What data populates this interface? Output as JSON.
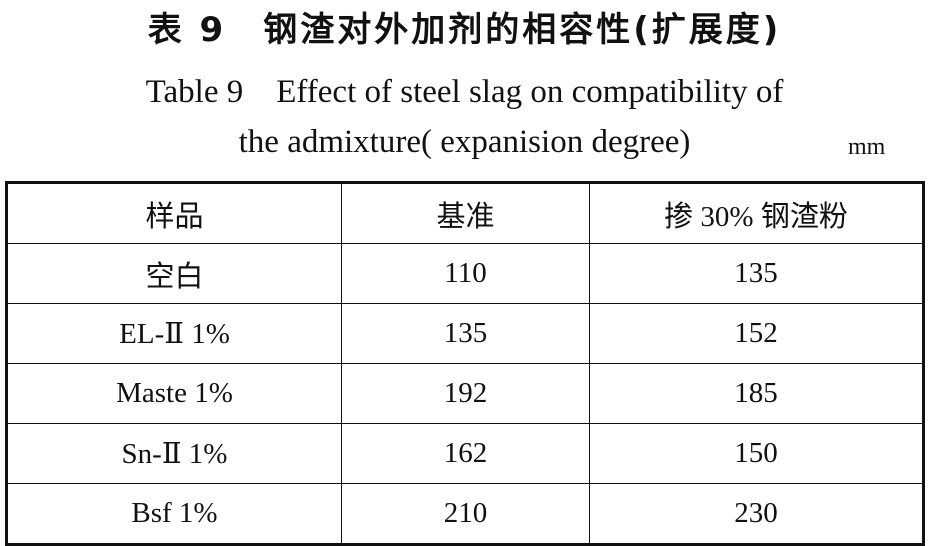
{
  "title": "表 9　钢渣对外加剂的相容性(扩展度)",
  "subtitle": [
    "Table 9　Effect of steel slag on compatibility of",
    "the admixture( expanision degree)"
  ],
  "unit": "mm",
  "table": {
    "header": [
      "样品",
      "基准",
      "掺 30% 钢渣粉"
    ],
    "rows": [
      [
        "空白",
        110,
        135
      ],
      [
        "EL-Ⅱ 1%",
        135,
        152
      ],
      [
        "Maste 1%",
        192,
        185
      ],
      [
        "Sn-Ⅱ 1%",
        162,
        150
      ],
      [
        "Bsf 1%",
        210,
        230
      ]
    ]
  }
}
